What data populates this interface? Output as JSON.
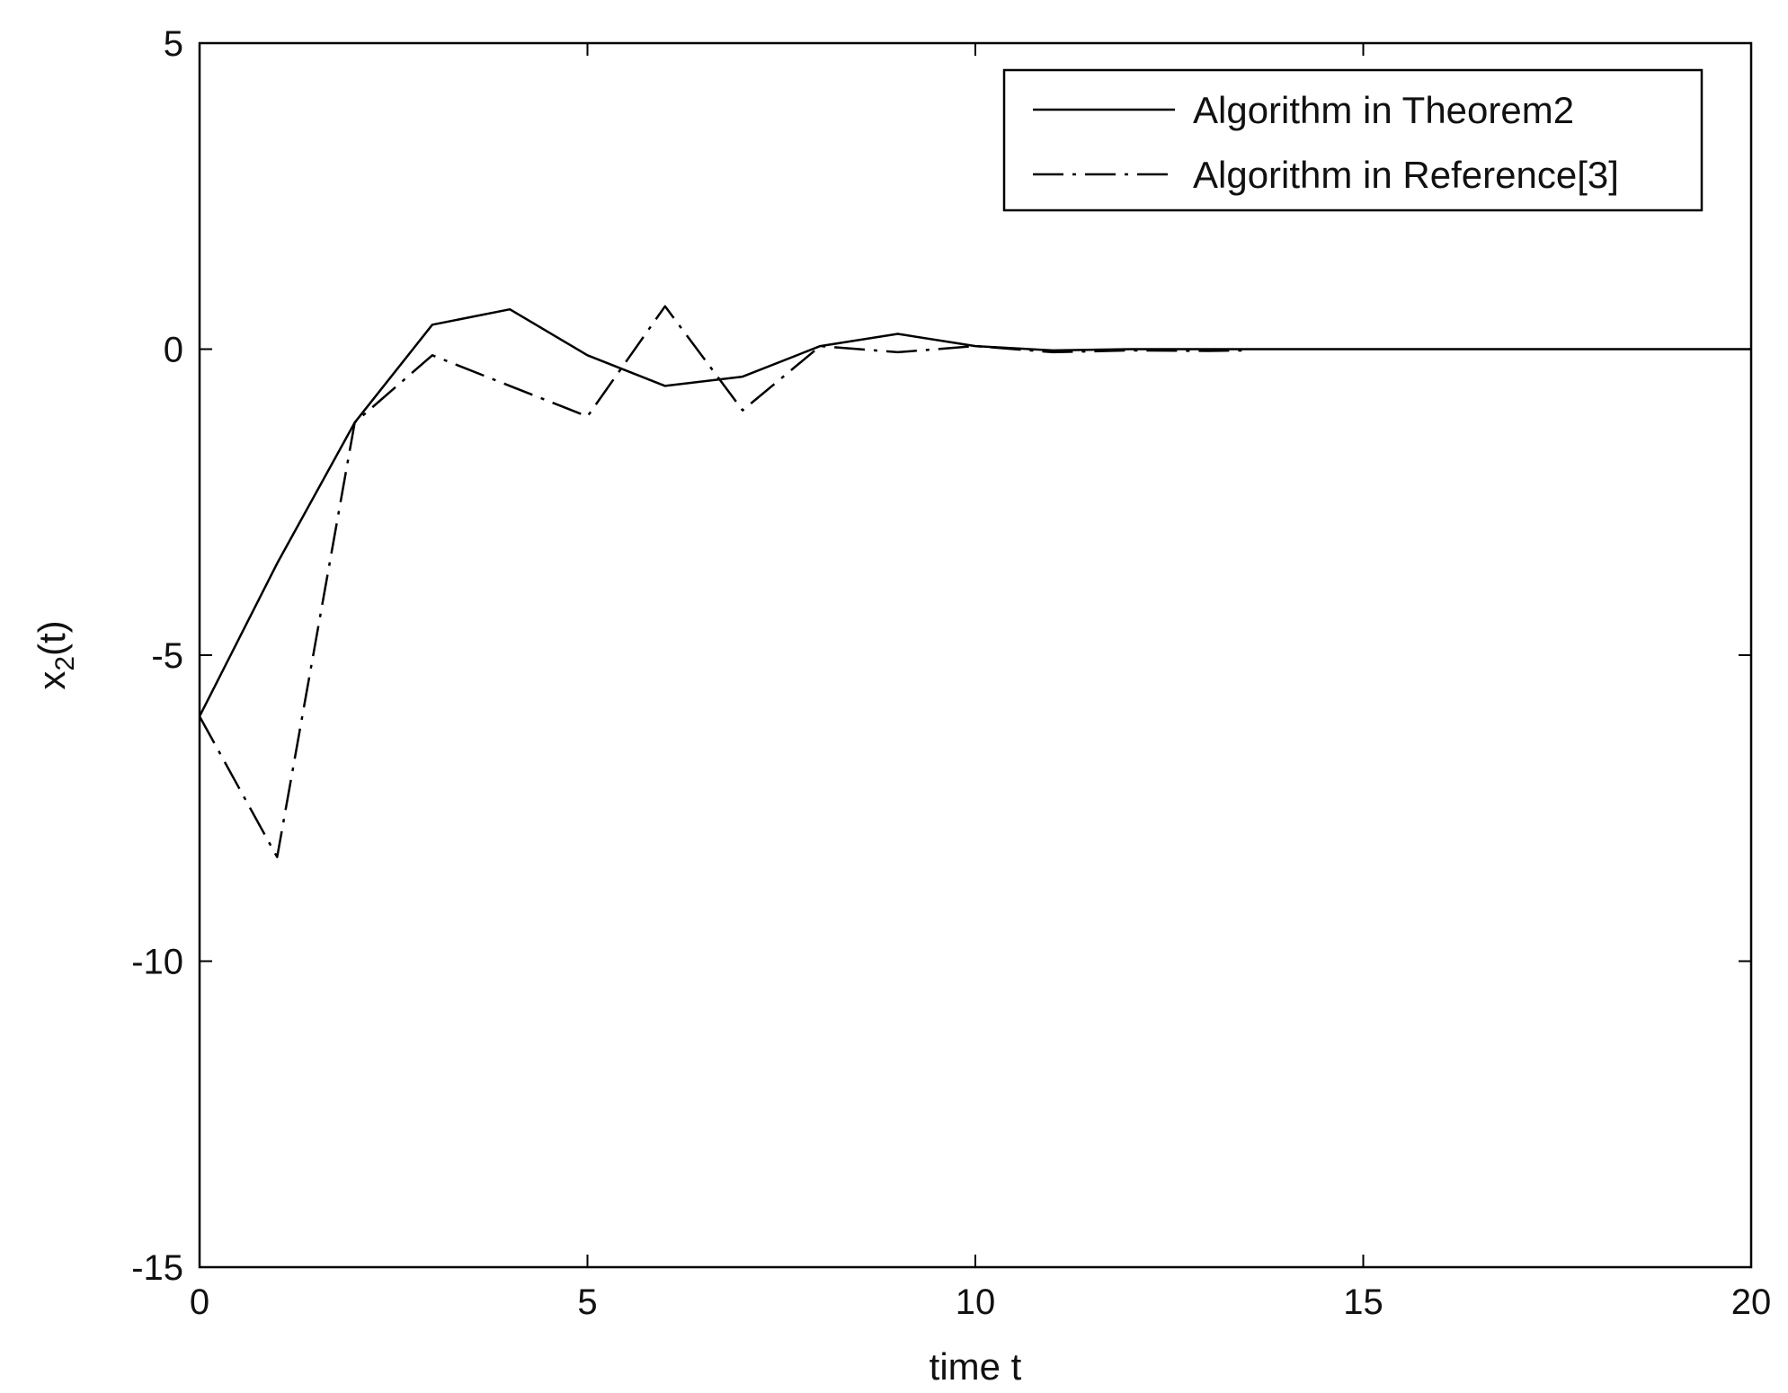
{
  "chart_data": {
    "type": "line",
    "title": "",
    "xlabel": "time t",
    "ylabel": {
      "main": "x",
      "sub": "2",
      "suffix": "(t)"
    },
    "xlim": [
      0,
      20
    ],
    "ylim": [
      -15,
      5
    ],
    "xticks": [
      0,
      5,
      10,
      15,
      20
    ],
    "yticks": [
      -15,
      -10,
      -5,
      0,
      5
    ],
    "xtick_labels": [
      "0",
      "5",
      "10",
      "15",
      "20"
    ],
    "ytick_labels": [
      "-15",
      "-10",
      "-5",
      "0",
      "5"
    ],
    "grid": false,
    "legend_position": "top-right",
    "line_color": "#000000",
    "series": [
      {
        "name": "Algorithm in Theorem2",
        "style": "solid",
        "x": [
          0,
          1,
          2,
          3,
          4,
          5,
          6,
          7,
          8,
          9,
          10,
          11,
          12,
          13,
          14,
          15,
          16,
          17,
          18,
          19,
          20
        ],
        "y": [
          -6,
          -3.5,
          -1.2,
          0.4,
          0.65,
          -0.1,
          -0.6,
          -0.45,
          0.05,
          0.25,
          0.05,
          -0.02,
          0,
          0,
          0,
          0,
          0,
          0,
          0,
          0,
          0
        ]
      },
      {
        "name": "Algorithm in Reference[3]",
        "style": "dashdot",
        "x": [
          0,
          1,
          2,
          3,
          4,
          5,
          6,
          7,
          8,
          9,
          10,
          11,
          12,
          13,
          13.5
        ],
        "y": [
          -6,
          -8.3,
          -1.2,
          -0.1,
          -0.6,
          -1.1,
          0.7,
          -1.0,
          0.05,
          -0.05,
          0.05,
          -0.05,
          -0.02,
          -0.03,
          -0.02
        ]
      }
    ]
  }
}
